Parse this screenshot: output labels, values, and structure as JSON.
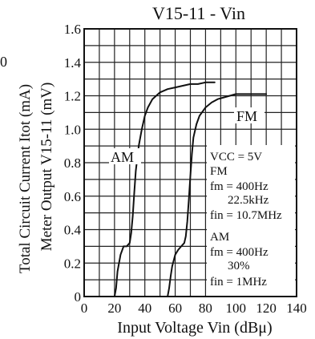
{
  "chart_data": {
    "type": "line",
    "title": "V15-11 - Vin",
    "xlabel": "Input Voltage Vin (dBμ)",
    "ylabel_outer": "Total Circuit Current Itot (mA)",
    "ylabel_inner": "Meter Output V15-11 (mV)",
    "left_edge_glyph": "0",
    "xlim": [
      0,
      140
    ],
    "ylim": [
      0,
      1.6
    ],
    "x_ticks": [
      "0",
      "20",
      "40",
      "60",
      "80",
      "100",
      "120",
      "140"
    ],
    "y_ticks": [
      "0",
      "0.2",
      "0.4",
      "0.6",
      "0.8",
      "1.0",
      "1.2",
      "1.4",
      "1.6"
    ],
    "grid": true,
    "series": [
      {
        "name": "AM",
        "x": [
          20,
          21,
          22,
          24,
          26,
          28,
          30,
          31,
          32,
          33,
          34,
          36,
          38,
          40,
          42,
          45,
          50,
          55,
          60,
          65,
          70,
          75,
          80,
          86
        ],
        "y": [
          0,
          0.05,
          0.15,
          0.25,
          0.3,
          0.3,
          0.32,
          0.38,
          0.48,
          0.62,
          0.75,
          0.9,
          1.0,
          1.08,
          1.13,
          1.18,
          1.22,
          1.24,
          1.25,
          1.26,
          1.27,
          1.27,
          1.28,
          1.28
        ]
      },
      {
        "name": "FM",
        "x": [
          55,
          56,
          57,
          58,
          60,
          62,
          64,
          66,
          67,
          68,
          69,
          70,
          71,
          72,
          74,
          76,
          80,
          84,
          88,
          92,
          96,
          100,
          110,
          120
        ],
        "y": [
          0,
          0.05,
          0.12,
          0.18,
          0.25,
          0.28,
          0.3,
          0.32,
          0.36,
          0.45,
          0.58,
          0.72,
          0.85,
          0.95,
          1.03,
          1.08,
          1.13,
          1.16,
          1.18,
          1.19,
          1.2,
          1.21,
          1.21,
          1.21
        ]
      }
    ],
    "series_labels": [
      "AM",
      "FM"
    ]
  },
  "conditions": {
    "vcc": "VCC = 5V",
    "fm_header": "FM",
    "fm_fm": "fm = 400Hz",
    "fm_dev": "22.5kHz",
    "fm_fin": "fin = 10.7MHz",
    "am_header": "AM",
    "am_fm": "fm = 400Hz",
    "am_mod": "30%",
    "am_fin": "fin = 1MHz"
  }
}
